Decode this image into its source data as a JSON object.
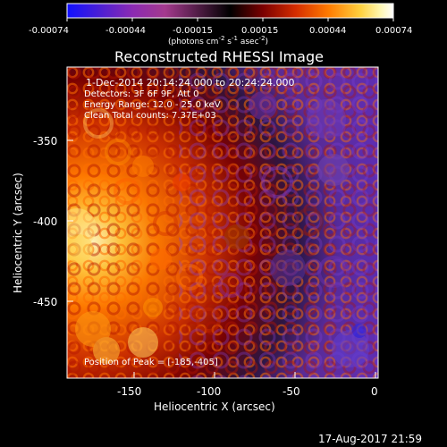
{
  "colorbar": {
    "ticks": [
      "-0.00074",
      "-0.00044",
      "-0.00015",
      "0.00015",
      "0.00044",
      "0.00074"
    ],
    "unit_prefix": "(photons cm",
    "unit_sup1": "-2",
    "unit_mid": " s",
    "unit_sup2": "-1",
    "unit_suffix": " asec",
    "unit_sup3": "-2",
    "unit_close": ")",
    "colors": [
      "#1010ff",
      "#4b1fd4",
      "#8b2ab3",
      "#a43a8e",
      "#000000",
      "#7a0000",
      "#d42c00",
      "#ff7a00",
      "#ffd13f",
      "#fff7b0",
      "#ffffff"
    ]
  },
  "plot": {
    "title": "Reconstructed RHESSI Image",
    "annotation_lines": [
      "1-Dec-2014 20:14:24.000 to 20:24:24.000",
      "Detectors: 3F 6F 9F, Att 0",
      "Energy Range: 12.0 - 25.0 keV",
      "Clean     Total counts: 7.37E+03"
    ],
    "peak_label": "Position of Peak = [-185,-405]",
    "xlabel": "Heliocentric X (arcsec)",
    "ylabel": "Heliocentric Y (arcsec)",
    "xticks": [
      "-150",
      "-100",
      "-50",
      "0"
    ],
    "yticks": [
      "-350",
      "-400",
      "-450"
    ],
    "colors": {
      "background": "#000000",
      "text": "#ffffff"
    }
  },
  "footer": {
    "timestamp": "17-Aug-2017 21:59"
  }
}
